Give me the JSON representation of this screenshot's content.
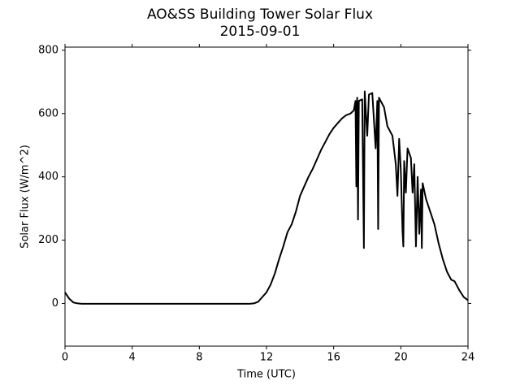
{
  "chart_data": {
    "type": "line",
    "title": "AO&SS Building Tower Solar Flux",
    "subtitle": "2015-09-01",
    "x_label": "Time (UTC)",
    "y_label": "Solar Flux (W/m^2)",
    "color": "#000000",
    "xlim": [
      0,
      24
    ],
    "xticks": [
      0,
      4,
      8,
      12,
      16,
      20,
      24
    ],
    "ylim": [
      -135,
      810
    ],
    "yticks": [
      0,
      200,
      400,
      600,
      800
    ],
    "grid": false,
    "x": [
      0,
      0.25,
      0.5,
      0.75,
      1,
      11,
      11.25,
      11.5,
      11.75,
      12,
      12.25,
      12.5,
      12.75,
      13,
      13.25,
      13.5,
      13.75,
      14,
      14.25,
      14.5,
      14.75,
      15,
      15.25,
      15.5,
      15.75,
      16,
      16.25,
      16.5,
      16.75,
      17,
      17.2,
      17.3,
      17.35,
      17.4,
      17.45,
      17.5,
      17.7,
      17.8,
      17.85,
      18,
      18.1,
      18.3,
      18.5,
      18.6,
      18.65,
      18.7,
      19,
      19.2,
      19.5,
      19.7,
      19.8,
      19.9,
      20,
      20.1,
      20.15,
      20.2,
      20.3,
      20.4,
      20.6,
      20.7,
      20.8,
      20.9,
      21,
      21.1,
      21.2,
      21.25,
      21.3,
      21.5,
      21.75,
      22,
      22.25,
      22.5,
      22.75,
      23,
      23.2,
      23.5,
      23.75,
      24
    ],
    "values": [
      35,
      15,
      3,
      0,
      -1,
      -1,
      0,
      5,
      20,
      35,
      60,
      95,
      140,
      180,
      225,
      250,
      290,
      340,
      370,
      400,
      425,
      455,
      485,
      510,
      535,
      555,
      570,
      585,
      595,
      600,
      610,
      640,
      370,
      650,
      265,
      640,
      645,
      175,
      670,
      530,
      660,
      665,
      490,
      640,
      235,
      650,
      620,
      560,
      530,
      440,
      340,
      520,
      420,
      230,
      180,
      450,
      350,
      490,
      460,
      350,
      440,
      180,
      400,
      220,
      360,
      175,
      380,
      330,
      290,
      250,
      190,
      140,
      100,
      75,
      70,
      40,
      20,
      10
    ]
  }
}
